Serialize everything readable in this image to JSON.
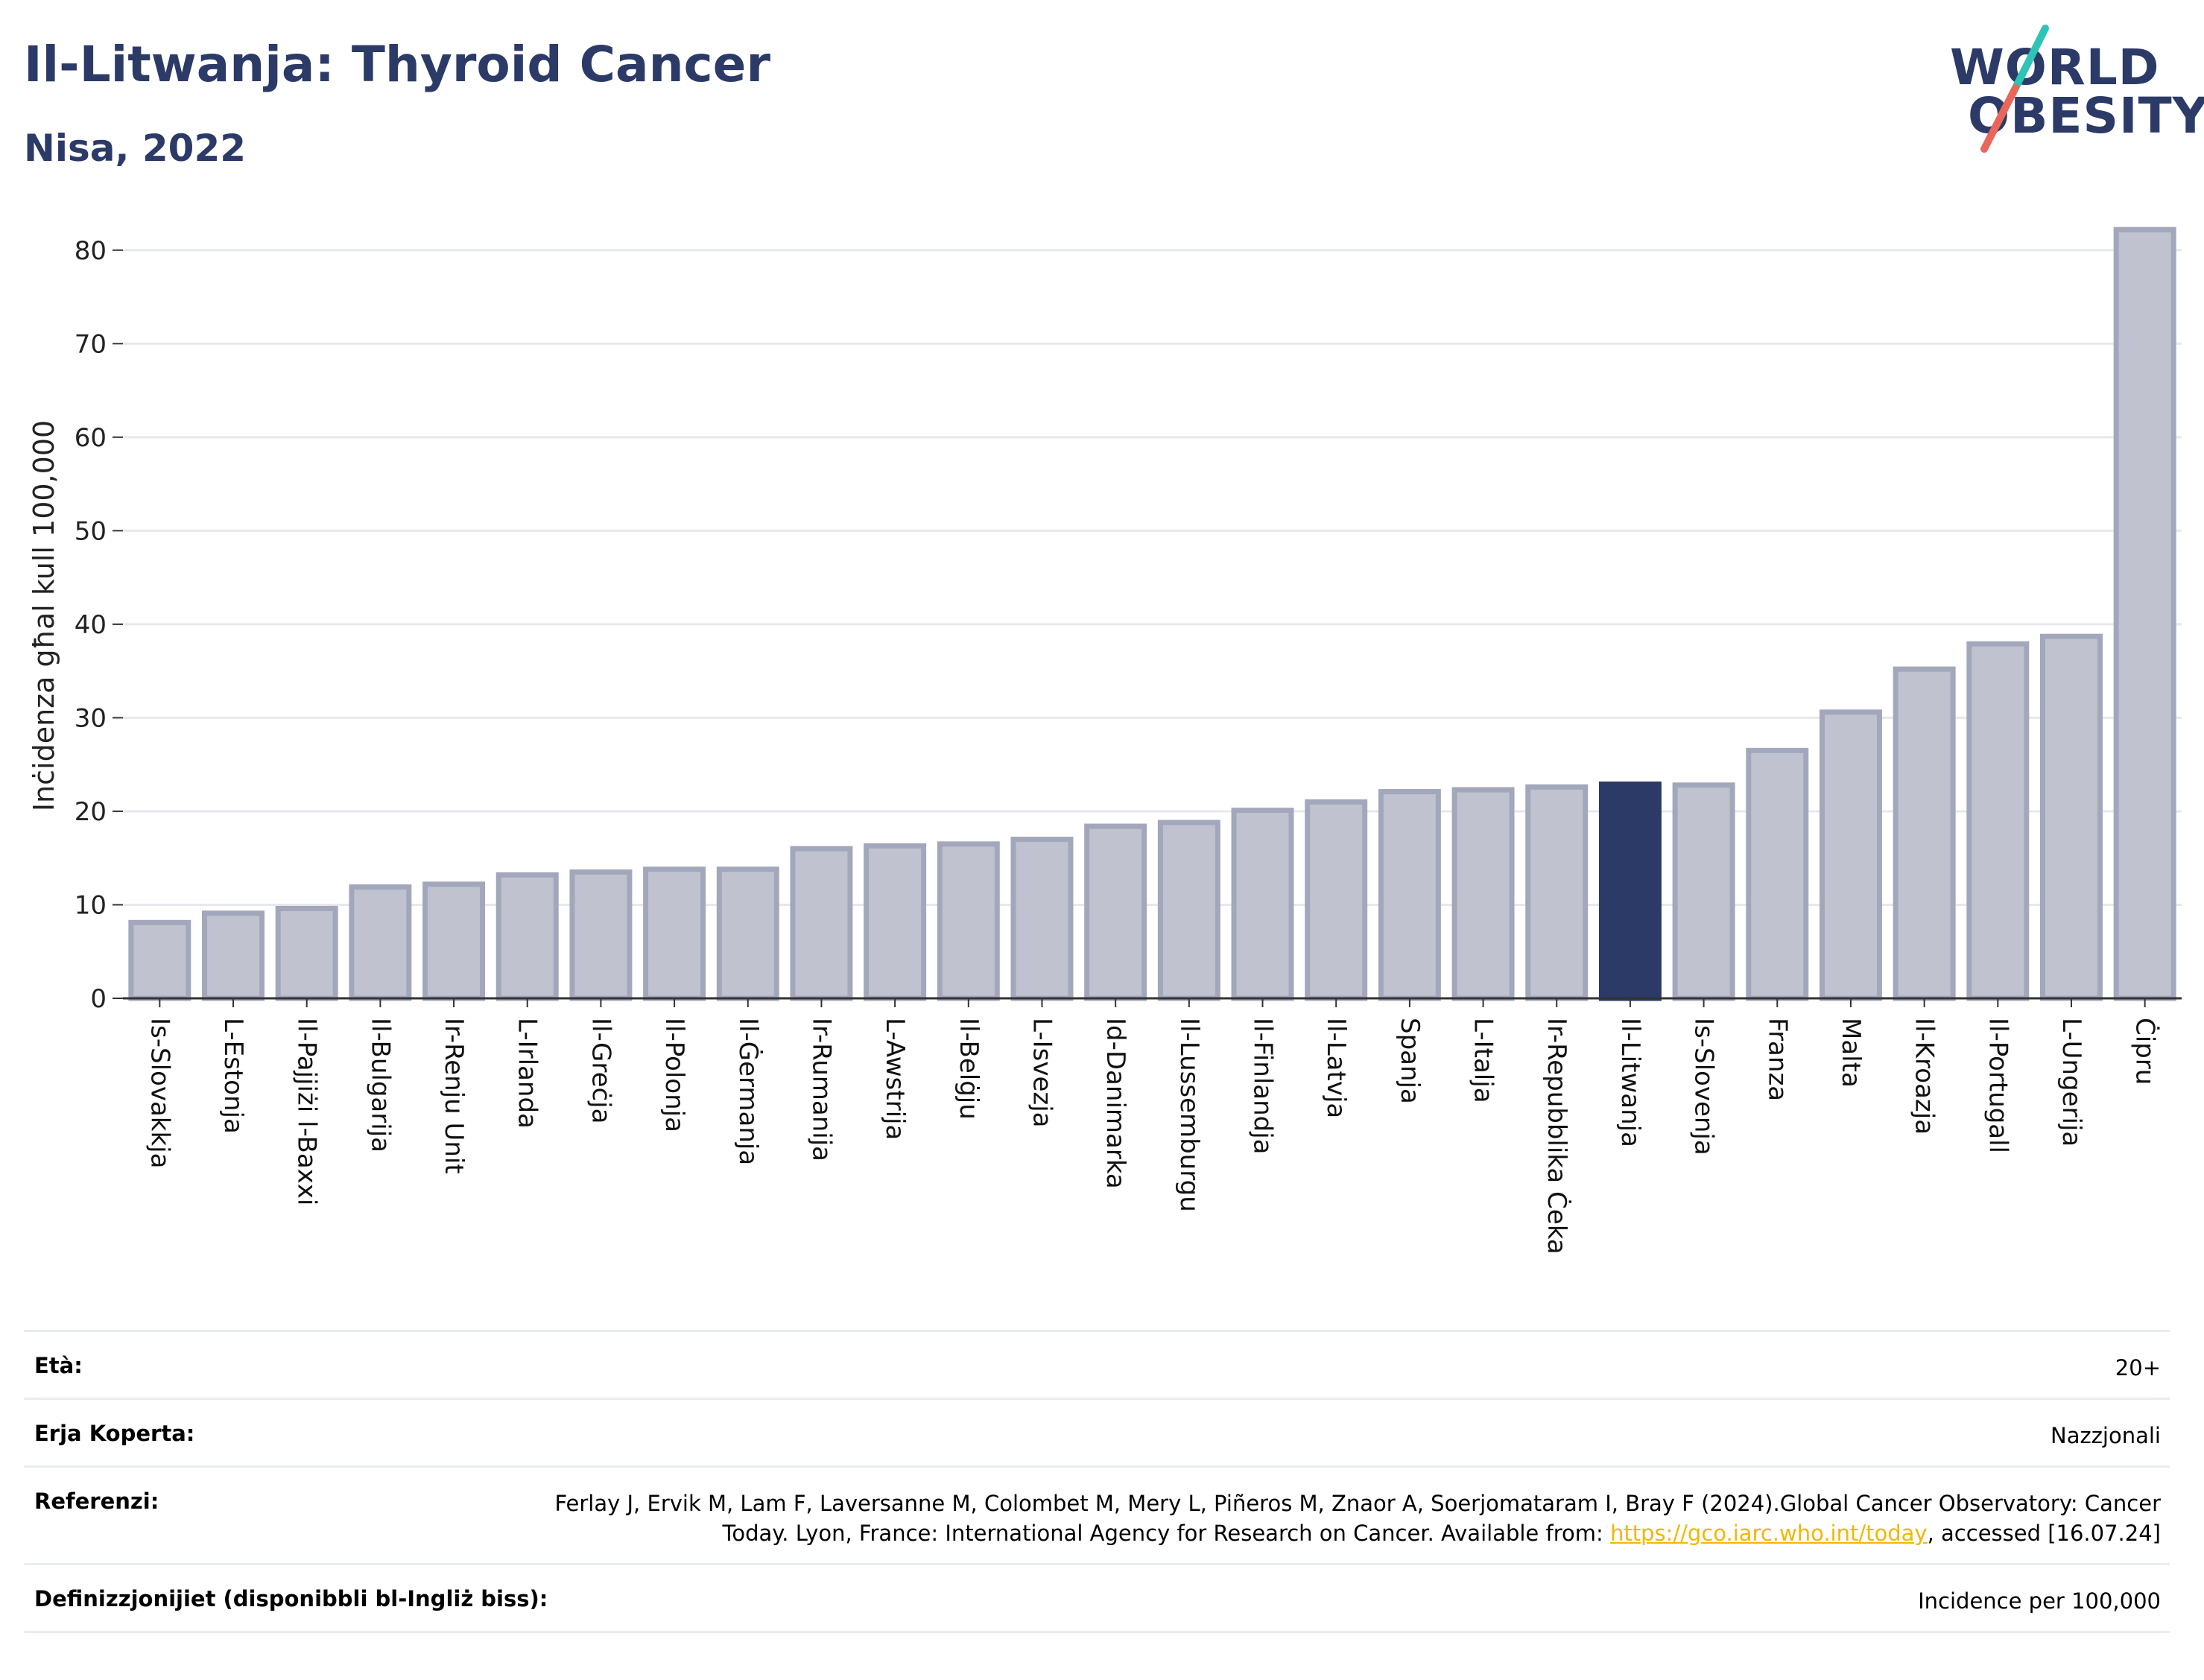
{
  "header": {
    "title": "Il-Litwanja: Thyroid Cancer",
    "subtitle": "Nisa, 2022"
  },
  "logo": {
    "line1": "WORLD",
    "line2": "OBESITY",
    "accent_colors": [
      "#2ec4b6",
      "#e8675a"
    ]
  },
  "chart_data": {
    "type": "bar",
    "title": "",
    "xlabel": "",
    "ylabel": "Inċidenza għal kull 100,000",
    "ylim": [
      0,
      85
    ],
    "yticks": [
      0,
      10,
      20,
      30,
      40,
      50,
      60,
      70,
      80
    ],
    "grid": true,
    "highlight": "Il-Litwanja",
    "colors": {
      "bar": "#c0c3cf",
      "bar_border": "#a2a7bb",
      "highlight": "#2b3a67",
      "grid": "#e6e8ee",
      "axis": "#333333"
    },
    "categories": [
      "Is-Slovakkja",
      "L-Estonja",
      "Il-Pajjiżi l-Baxxi",
      "Il-Bulgarija",
      "Ir-Renju Unit",
      "L-Irlanda",
      "Il-Greċja",
      "Il-Polonja",
      "Il-Ġermanja",
      "Ir-Rumanija",
      "L-Awstrija",
      "Il-Belġju",
      "L-Isvezja",
      "Id-Danimarka",
      "Il-Lussemburgu",
      "Il-Finlandja",
      "Il-Latvja",
      "Spanja",
      "L-Italja",
      "Ir-Repubblika Ċeka",
      "Il-Litwanja",
      "Is-Slovenja",
      "Franza",
      "Malta",
      "Il-Kroazja",
      "Il-Portugall",
      "L-Ungerija",
      "Ċipru"
    ],
    "values": [
      8.1,
      9.1,
      9.6,
      11.9,
      12.2,
      13.2,
      13.5,
      13.8,
      13.8,
      16.0,
      16.3,
      16.5,
      17.0,
      18.4,
      18.8,
      20.1,
      21.0,
      22.1,
      22.3,
      22.6,
      22.9,
      22.8,
      26.5,
      30.6,
      35.2,
      37.9,
      38.7,
      82.2
    ]
  },
  "info": {
    "age_label": "Età:",
    "age_value": "20+",
    "area_label": "Erja Koperta:",
    "area_value": "Nazzjonali",
    "ref_label": "Referenzi:",
    "ref_text": "Ferlay J, Ervik M, Lam F, Laversanne M, Colombet M, Mery L, Piñeros M, Znaor A, Soerjomataram I, Bray F (2024).Global Cancer Observatory: Cancer Today. Lyon, France: International Agency for Research on Cancer. Available from: ",
    "ref_link": "https://gco.iarc.who.int/today",
    "ref_tail": ", accessed [16.07.24]",
    "def_label": "Definizzjonijiet (disponibbli bl-Ingliż biss):",
    "def_value": "Incidence per 100,000"
  }
}
